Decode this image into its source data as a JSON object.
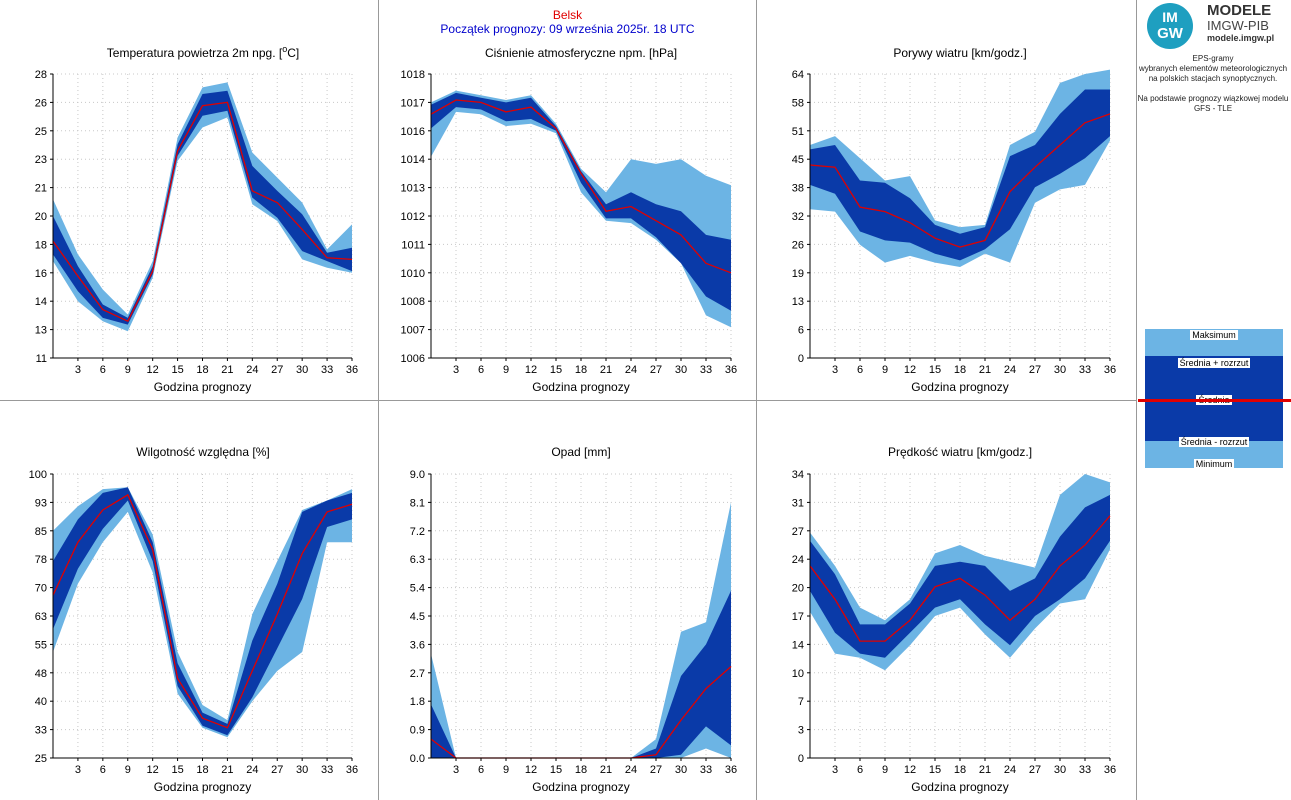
{
  "header": {
    "station": "Belsk",
    "forecast_start": "Początek prognozy: 09 września 2025r. 18 UTC"
  },
  "logo": {
    "circle_top": "IM",
    "circle_bottom": "GW",
    "line1": "MODELE",
    "line2": "IMGW-PIB",
    "line3": "modele.imgw.pl"
  },
  "info": {
    "lines": [
      "EPS-gramy",
      "wybranych elementów meteorologicznych",
      "na polskich stacjach  synoptycznych.",
      "",
      "Na podstawie prognozy wiązkowej modelu",
      "GFS - TLE"
    ]
  },
  "legend": {
    "max": "Maksimum",
    "plus": "Średnia + rozrzut",
    "mean": "Średnia",
    "minus": "Średnia - rozrzut",
    "min": "Minimum"
  },
  "colors": {
    "minmax_band": "#6cb4e4",
    "spread_band": "#0a3aa8",
    "mean_line": "#e00000",
    "grid": "#c8c8c8"
  },
  "chart_data": [
    {
      "type": "area",
      "title_text": "Temperatura powietrza 2m npg. [",
      "title_sup": "o",
      "title_tail": "C]",
      "xlabel": "Godzina prognozy",
      "x": [
        0,
        3,
        6,
        9,
        12,
        15,
        18,
        21,
        24,
        27,
        30,
        33,
        36
      ],
      "xticks": [
        "3",
        "6",
        "9",
        "12",
        "15",
        "18",
        "21",
        "24",
        "27",
        "30",
        "33",
        "36"
      ],
      "ylim": [
        11,
        28
      ],
      "yticks": [
        "11",
        "13",
        "14",
        "16",
        "18",
        "20",
        "21",
        "23",
        "25",
        "26",
        "28"
      ],
      "max": [
        20.5,
        17.2,
        15.1,
        13.6,
        16.8,
        24.2,
        27.2,
        27.5,
        23.3,
        21.8,
        20.3,
        17.5,
        19.0
      ],
      "mean_plus": [
        19.5,
        16.5,
        14.2,
        13.4,
        16.5,
        23.8,
        26.8,
        27.0,
        22.5,
        21.0,
        19.6,
        17.3,
        17.6
      ],
      "mean": [
        18.0,
        15.9,
        13.9,
        13.2,
        16.2,
        23.4,
        26.1,
        26.3,
        21.0,
        20.3,
        18.7,
        17.0,
        16.9
      ],
      "mean_minus": [
        17.2,
        15.0,
        13.4,
        13.0,
        16.0,
        23.1,
        25.5,
        25.8,
        20.6,
        19.4,
        17.4,
        16.8,
        16.2
      ],
      "min": [
        16.8,
        14.4,
        13.2,
        12.6,
        15.8,
        22.8,
        24.8,
        25.4,
        20.2,
        19.2,
        16.9,
        16.4,
        16.1
      ]
    },
    {
      "type": "area",
      "title_text": "Ciśnienie atmosferyczne npm. [hPa]",
      "xlabel": "Godzina prognozy",
      "x": [
        0,
        3,
        6,
        9,
        12,
        15,
        18,
        21,
        24,
        27,
        30,
        33,
        36
      ],
      "xticks": [
        "3",
        "6",
        "9",
        "12",
        "15",
        "18",
        "21",
        "24",
        "27",
        "30",
        "33",
        "36"
      ],
      "ylim": [
        1006,
        1018
      ],
      "yticks": [
        "1006",
        "1007",
        "1008",
        "1010",
        "1011",
        "1012",
        "1013",
        "1014",
        "1016",
        "1017",
        "1018"
      ],
      "max": [
        1016.8,
        1017.3,
        1017.1,
        1016.9,
        1017.1,
        1015.9,
        1014.0,
        1013.0,
        1014.4,
        1014.2,
        1014.4,
        1013.7,
        1013.3
      ],
      "mean_plus": [
        1016.7,
        1017.2,
        1017.0,
        1016.8,
        1017.0,
        1015.8,
        1013.9,
        1012.5,
        1013.0,
        1012.5,
        1012.2,
        1011.2,
        1011.0
      ],
      "mean": [
        1016.3,
        1016.9,
        1016.8,
        1016.4,
        1016.6,
        1015.7,
        1013.8,
        1012.2,
        1012.4,
        1011.8,
        1011.2,
        1010.0,
        1009.6
      ],
      "mean_minus": [
        1015.7,
        1016.6,
        1016.5,
        1016.0,
        1016.1,
        1015.6,
        1013.4,
        1011.9,
        1011.9,
        1011.1,
        1010.0,
        1008.6,
        1008.0
      ],
      "min": [
        1014.5,
        1016.4,
        1016.3,
        1015.8,
        1015.9,
        1015.5,
        1013.0,
        1011.8,
        1011.7,
        1011.0,
        1010.0,
        1007.8,
        1007.3
      ]
    },
    {
      "type": "area",
      "title_text": "Porywy wiatru [km/godz.]",
      "xlabel": "Godzina prognozy",
      "x": [
        0,
        3,
        6,
        9,
        12,
        15,
        18,
        21,
        24,
        27,
        30,
        33,
        36
      ],
      "xticks": [
        "3",
        "6",
        "9",
        "12",
        "15",
        "18",
        "21",
        "24",
        "27",
        "30",
        "33",
        "36"
      ],
      "ylim": [
        0,
        64
      ],
      "yticks": [
        "0",
        "6",
        "13",
        "19",
        "26",
        "32",
        "38",
        "45",
        "51",
        "58",
        "64"
      ],
      "max": [
        48,
        50,
        45,
        40,
        41,
        31,
        29.5,
        30,
        48,
        51,
        62,
        64,
        65
      ],
      "mean_plus": [
        47,
        48,
        40,
        39.5,
        36,
        30,
        28,
        29.5,
        45.5,
        48,
        55,
        60.5,
        60.5
      ],
      "mean": [
        43.5,
        43,
        34,
        33,
        30.5,
        27,
        25,
        26.5,
        37.5,
        43,
        48,
        53,
        55
      ],
      "mean_minus": [
        39,
        37,
        28.5,
        26.5,
        26,
        23.5,
        22,
        24.5,
        29,
        38.5,
        41.5,
        45,
        50
      ],
      "min": [
        33.5,
        33,
        25.5,
        21.5,
        23,
        21.5,
        20.5,
        23.5,
        21.5,
        35,
        38,
        39,
        49
      ]
    },
    {
      "type": "area",
      "title_text": "Wilgotność względna [%]",
      "xlabel": "Godzina prognozy",
      "x": [
        0,
        3,
        6,
        9,
        12,
        15,
        18,
        21,
        24,
        27,
        30,
        33,
        36
      ],
      "xticks": [
        "3",
        "6",
        "9",
        "12",
        "15",
        "18",
        "21",
        "24",
        "27",
        "30",
        "33",
        "36"
      ],
      "ylim": [
        25,
        100
      ],
      "yticks": [
        "25",
        "33",
        "40",
        "48",
        "55",
        "63",
        "70",
        "78",
        "85",
        "93",
        "100"
      ],
      "max": [
        85,
        91.5,
        96,
        96.5,
        84,
        53,
        39,
        35,
        63,
        77,
        90.5,
        93,
        96
      ],
      "mean_plus": [
        77,
        88,
        95,
        96.5,
        82,
        50,
        37,
        34,
        56,
        71,
        90,
        93,
        95
      ],
      "mean": [
        68,
        82,
        90.5,
        94.5,
        80,
        46,
        35.5,
        33,
        48,
        63,
        79,
        90,
        92
      ],
      "mean_minus": [
        59,
        75,
        85.5,
        93,
        77,
        44,
        33.5,
        31,
        41,
        54,
        67,
        86,
        88
      ],
      "min": [
        53,
        71,
        82,
        90,
        74,
        42,
        33,
        30.5,
        40,
        48,
        53,
        82,
        82
      ]
    },
    {
      "type": "area",
      "title_text": "Opad [mm]",
      "xlabel": "Godzina prognozy",
      "x": [
        0,
        3,
        6,
        9,
        12,
        15,
        18,
        21,
        24,
        27,
        30,
        33,
        36
      ],
      "xticks": [
        "3",
        "6",
        "9",
        "12",
        "15",
        "18",
        "21",
        "24",
        "27",
        "30",
        "33",
        "36"
      ],
      "ylim": [
        0,
        9
      ],
      "yticks": [
        "0.0",
        "0.9",
        "1.8",
        "2.7",
        "3.6",
        "4.5",
        "5.4",
        "6.3",
        "7.2",
        "8.1",
        "9.0"
      ],
      "max": [
        3.3,
        0,
        0,
        0,
        0,
        0,
        0,
        0,
        0,
        0.6,
        4.0,
        4.3,
        8.1
      ],
      "mean_plus": [
        1.7,
        0,
        0,
        0,
        0,
        0,
        0,
        0,
        0,
        0.3,
        2.6,
        3.6,
        5.3
      ],
      "mean": [
        0.6,
        0,
        0,
        0,
        0,
        0,
        0,
        0,
        0,
        0.1,
        1.2,
        2.2,
        2.9
      ],
      "mean_minus": [
        0,
        0,
        0,
        0,
        0,
        0,
        0,
        0,
        0,
        0,
        0.1,
        1.0,
        0.4
      ],
      "min": [
        0,
        0,
        0,
        0,
        0,
        0,
        0,
        0,
        0,
        0,
        0,
        0.3,
        0
      ]
    },
    {
      "type": "area",
      "title_text": "Prędkość wiatru [km/godz.]",
      "xlabel": "Godzina prognozy",
      "x": [
        0,
        3,
        6,
        9,
        12,
        15,
        18,
        21,
        24,
        27,
        30,
        33,
        36
      ],
      "xticks": [
        "3",
        "6",
        "9",
        "12",
        "15",
        "18",
        "21",
        "24",
        "27",
        "30",
        "33",
        "36"
      ],
      "ylim": [
        0,
        34
      ],
      "yticks": [
        "0",
        "3",
        "7",
        "10",
        "14",
        "17",
        "20",
        "24",
        "27",
        "31",
        "34"
      ],
      "max": [
        27,
        23,
        18,
        16.5,
        19,
        24.5,
        25.5,
        24.2,
        23.5,
        22.8,
        31.5,
        34,
        33
      ],
      "mean_plus": [
        26,
        22,
        16,
        16,
        18.5,
        23,
        23.5,
        23,
        20,
        21.5,
        26.5,
        30,
        31.5
      ],
      "mean": [
        23,
        19,
        14,
        14,
        16.5,
        20.5,
        21.5,
        19.5,
        16.5,
        19,
        23,
        25.5,
        29
      ],
      "mean_minus": [
        20,
        15,
        12.5,
        12,
        15,
        18,
        19,
        16,
        13.5,
        17,
        19,
        21.5,
        26
      ],
      "min": [
        17.5,
        12.5,
        12,
        10.5,
        13.5,
        17,
        18,
        14.8,
        12,
        15.5,
        18.5,
        19,
        25
      ]
    }
  ]
}
